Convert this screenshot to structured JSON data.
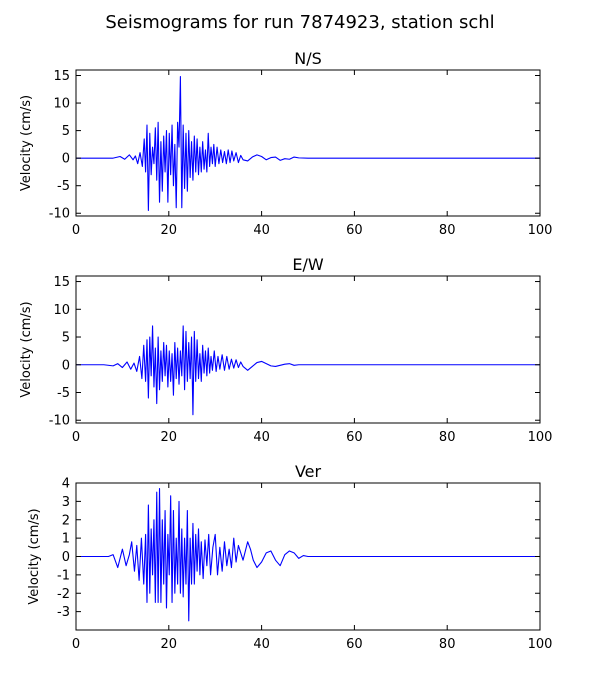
{
  "figure": {
    "suptitle": "Seismograms for run 7874923, station schl"
  },
  "colors": {
    "trace": "#0000ff",
    "axes": "#000000",
    "background": "#ffffff"
  },
  "chart_data": [
    {
      "type": "line",
      "title": "N/S",
      "xlabel": "",
      "ylabel": "Velocity (cm/s)",
      "xlim": [
        0,
        100
      ],
      "ylim": [
        -10.5,
        16
      ],
      "xticks": [
        0,
        20,
        40,
        60,
        80,
        100
      ],
      "yticks": [
        15,
        10,
        5,
        0,
        -5,
        -10
      ],
      "grid": false,
      "series": [
        {
          "x": [
            0,
            5,
            8,
            9.5,
            10.5,
            11.5,
            12.3,
            12.8,
            13.3,
            13.8,
            14.3,
            14.7,
            15.0,
            15.3,
            15.6,
            15.9,
            16.2,
            16.5,
            16.8,
            17.1,
            17.4,
            17.7,
            18.0,
            18.3,
            18.6,
            18.9,
            19.2,
            19.5,
            19.8,
            20.1,
            20.4,
            20.7,
            21.0,
            21.3,
            21.6,
            21.9,
            22.2,
            22.5,
            22.8,
            23.1,
            23.4,
            23.7,
            24.0,
            24.3,
            24.6,
            24.9,
            25.2,
            25.5,
            25.8,
            26.1,
            26.4,
            26.7,
            27.0,
            27.3,
            27.6,
            27.9,
            28.2,
            28.5,
            28.8,
            29.1,
            29.4,
            29.7,
            30.0,
            30.4,
            30.8,
            31.2,
            31.6,
            32.0,
            32.4,
            32.8,
            33.2,
            33.6,
            34.0,
            34.5,
            35.0,
            35.5,
            36.0,
            37.0,
            38.0,
            39.0,
            40.0,
            41.0,
            42.0,
            43.0,
            44.0,
            45.0,
            46.0,
            47.0,
            48.0,
            50.0,
            55.0,
            60.0,
            70.0,
            80.0,
            90.0,
            100.0
          ],
          "y": [
            0,
            0,
            0,
            0.3,
            -0.2,
            0.6,
            -0.3,
            0.4,
            -1.0,
            1.0,
            -1.5,
            3.5,
            -2.5,
            6.0,
            -9.5,
            4.5,
            -3.0,
            2.0,
            -1.0,
            5.5,
            -4.0,
            6.5,
            -8.0,
            3.0,
            -6.0,
            4.0,
            -2.5,
            5.0,
            -8.0,
            4.5,
            -3.0,
            6.0,
            -5.0,
            2.5,
            -9.0,
            6.5,
            2.0,
            14.8,
            -9.0,
            6.0,
            -5.5,
            4.5,
            -6.0,
            5.0,
            -3.5,
            3.0,
            -4.0,
            4.0,
            -2.5,
            3.5,
            -3.0,
            2.0,
            -2.5,
            3.0,
            -2.0,
            1.5,
            -2.5,
            4.5,
            -1.5,
            2.0,
            -1.0,
            2.5,
            -1.5,
            2.0,
            -1.0,
            1.5,
            -0.8,
            1.2,
            -1.0,
            1.5,
            -0.8,
            1.3,
            -0.5,
            1.0,
            -0.8,
            0.5,
            -0.3,
            -0.5,
            0.2,
            0.6,
            0.3,
            -0.3,
            0.1,
            0.2,
            -0.4,
            -0.1,
            -0.2,
            0.2,
            0.05,
            0,
            0,
            0,
            0,
            0,
            0,
            0
          ]
        }
      ]
    },
    {
      "type": "line",
      "title": "E/W",
      "xlabel": "",
      "ylabel": "Velocity (cm/s)",
      "xlim": [
        0,
        100
      ],
      "ylim": [
        -10.5,
        16
      ],
      "xticks": [
        0,
        20,
        40,
        60,
        80,
        100
      ],
      "yticks": [
        15,
        10,
        5,
        0,
        -5,
        -10
      ],
      "grid": false,
      "series": [
        {
          "x": [
            0,
            6,
            8,
            9,
            10,
            11,
            11.8,
            12.5,
            13.1,
            13.7,
            14.2,
            14.6,
            15.0,
            15.3,
            15.6,
            15.9,
            16.2,
            16.5,
            16.8,
            17.1,
            17.4,
            17.7,
            18.0,
            18.3,
            18.6,
            18.9,
            19.2,
            19.5,
            19.8,
            20.1,
            20.4,
            20.7,
            21.0,
            21.3,
            21.6,
            21.9,
            22.2,
            22.5,
            22.8,
            23.1,
            23.4,
            23.7,
            24.0,
            24.3,
            24.6,
            24.9,
            25.2,
            25.5,
            25.8,
            26.1,
            26.4,
            26.7,
            27.0,
            27.3,
            27.6,
            27.9,
            28.2,
            28.5,
            28.8,
            29.1,
            29.4,
            29.8,
            30.2,
            30.6,
            31.0,
            31.5,
            32.0,
            32.5,
            33.0,
            33.5,
            34.0,
            34.5,
            35.0,
            35.5,
            36.0,
            37.0,
            38.0,
            39.0,
            40.0,
            41.0,
            42.0,
            43.0,
            44.0,
            45.0,
            46.0,
            47.0,
            48.0,
            50.0,
            60.0,
            70.0,
            80.0,
            90.0,
            100.0
          ],
          "y": [
            0,
            0,
            -0.2,
            0.2,
            -0.5,
            0.5,
            -0.8,
            0.3,
            -1.2,
            1.5,
            -2.5,
            3.5,
            -3.0,
            4.5,
            -6.0,
            5.0,
            -2.0,
            7.0,
            -4.0,
            3.0,
            -7.0,
            5.0,
            -4.5,
            2.5,
            -3.0,
            4.0,
            -2.0,
            3.5,
            -4.0,
            2.5,
            -3.0,
            2.0,
            -5.5,
            4.0,
            -2.5,
            3.0,
            -3.5,
            2.5,
            -2.0,
            7.0,
            -4.5,
            6.0,
            -3.0,
            4.0,
            -2.5,
            5.0,
            -9.0,
            6.0,
            -3.0,
            4.5,
            -2.5,
            2.0,
            -3.0,
            3.5,
            -1.5,
            2.5,
            -2.0,
            3.0,
            -1.5,
            1.5,
            -1.0,
            2.5,
            -1.2,
            1.5,
            -0.8,
            1.8,
            -1.0,
            1.5,
            -0.8,
            1.0,
            -0.6,
            0.9,
            -0.5,
            0.5,
            -0.3,
            -1.0,
            -0.3,
            0.4,
            0.6,
            0.2,
            -0.2,
            -0.3,
            -0.1,
            0.1,
            0.2,
            -0.1,
            0,
            0,
            0,
            0,
            0,
            0,
            0
          ]
        }
      ]
    },
    {
      "type": "line",
      "title": "Ver",
      "xlabel": "",
      "ylabel": "Velocity (cm/s)",
      "xlim": [
        0,
        100
      ],
      "ylim": [
        -4,
        4
      ],
      "xticks": [
        0,
        20,
        40,
        60,
        80,
        100
      ],
      "yticks": [
        4,
        3,
        2,
        1,
        0,
        -1,
        -2,
        -3
      ],
      "grid": false,
      "series": [
        {
          "x": [
            0,
            5,
            7,
            8,
            9.0,
            10.0,
            10.8,
            11.5,
            12.0,
            12.6,
            13.1,
            13.6,
            14.1,
            14.6,
            15.0,
            15.3,
            15.6,
            15.9,
            16.2,
            16.5,
            16.8,
            17.1,
            17.4,
            17.7,
            18.0,
            18.3,
            18.6,
            18.9,
            19.2,
            19.5,
            19.8,
            20.1,
            20.4,
            20.7,
            21.0,
            21.3,
            21.6,
            21.9,
            22.2,
            22.5,
            22.8,
            23.1,
            23.4,
            23.7,
            24.0,
            24.3,
            24.6,
            24.9,
            25.2,
            25.5,
            25.8,
            26.1,
            26.4,
            26.7,
            27.0,
            27.4,
            27.8,
            28.2,
            28.6,
            29.0,
            29.5,
            30.0,
            30.5,
            31.0,
            31.5,
            32.0,
            32.5,
            33.0,
            33.5,
            34.0,
            34.5,
            35.0,
            36.0,
            37.0,
            37.6,
            38.2,
            39.0,
            40.0,
            41.0,
            42.0,
            43.0,
            44.0,
            45.0,
            46.0,
            47.0,
            48.0,
            49.0,
            50.0,
            52.0,
            60.0,
            70.0,
            80.0,
            90.0,
            100.0
          ],
          "y": [
            0,
            0,
            0,
            0.1,
            -0.6,
            0.4,
            -0.5,
            0.1,
            0.8,
            -0.8,
            0.6,
            -1.3,
            1.0,
            -1.5,
            1.2,
            -2.5,
            2.8,
            -2.0,
            1.5,
            -1.0,
            2.0,
            -2.5,
            3.5,
            -2.5,
            3.7,
            -2.5,
            2.0,
            -1.5,
            2.5,
            -2.8,
            1.2,
            -1.0,
            3.3,
            -2.5,
            2.5,
            -2.0,
            1.0,
            -1.5,
            3.0,
            -2.0,
            1.5,
            -2.2,
            1.0,
            -1.5,
            2.5,
            -3.5,
            1.0,
            -1.5,
            1.8,
            -1.5,
            1.2,
            -0.8,
            1.5,
            -1.0,
            0.8,
            -1.2,
            0.9,
            -0.5,
            1.2,
            -1.0,
            0.5,
            1.2,
            -1.0,
            0.5,
            -0.8,
            0.8,
            -0.5,
            0.4,
            -0.6,
            1.0,
            -0.3,
            0.6,
            -0.2,
            0.8,
            0.4,
            -0.2,
            -0.6,
            -0.3,
            0.2,
            0.3,
            -0.2,
            -0.5,
            0.1,
            0.3,
            0.2,
            -0.1,
            0.05,
            0,
            0,
            0,
            0,
            0,
            0,
            0
          ]
        }
      ]
    }
  ]
}
